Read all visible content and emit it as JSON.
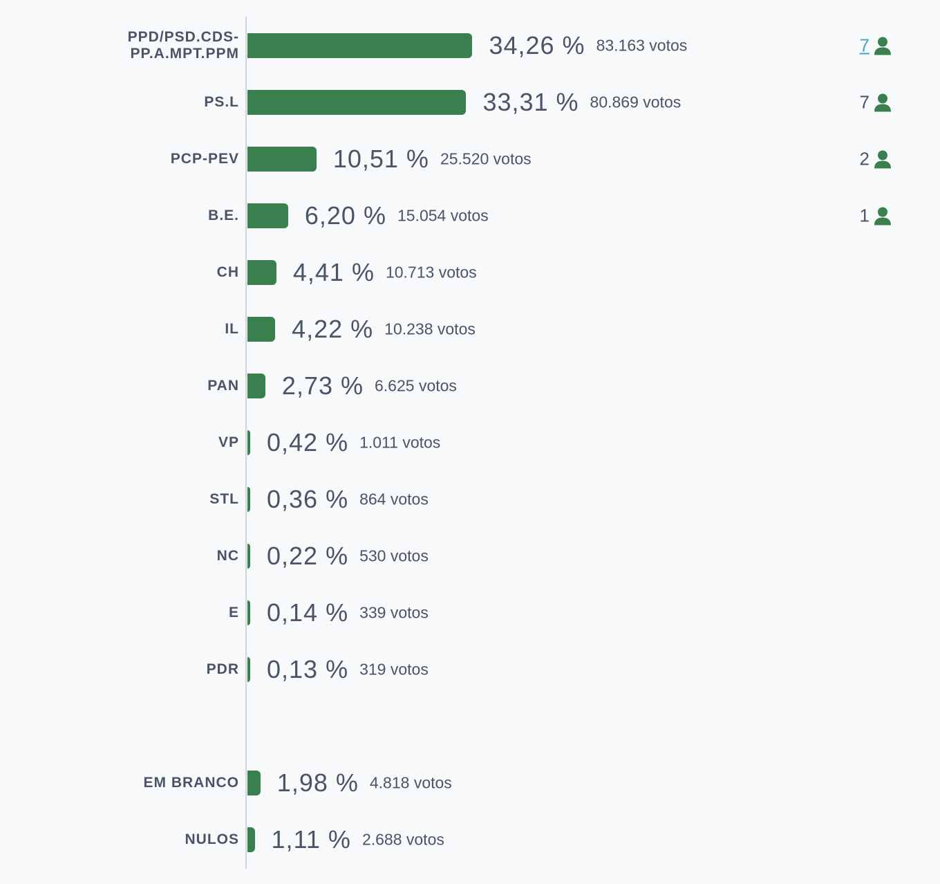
{
  "chart_data": {
    "type": "bar",
    "orientation": "horizontal",
    "value_suffix": "%",
    "votes_suffix": "votos",
    "series": [
      {
        "party": "PPD/PSD.CDS-PP.A.MPT.PPM",
        "label_lines": [
          "PPD/PSD.CDS-",
          "PP.A.MPT.PPM"
        ],
        "percent": 34.26,
        "percent_text": "34,26",
        "votes": "83.163",
        "seats": "7",
        "seats_link": true
      },
      {
        "party": "PS.L",
        "label_lines": [
          "PS.L"
        ],
        "percent": 33.31,
        "percent_text": "33,31",
        "votes": "80.869",
        "seats": "7",
        "seats_link": false
      },
      {
        "party": "PCP-PEV",
        "label_lines": [
          "PCP-PEV"
        ],
        "percent": 10.51,
        "percent_text": "10,51",
        "votes": "25.520",
        "seats": "2",
        "seats_link": false
      },
      {
        "party": "B.E.",
        "label_lines": [
          "B.E."
        ],
        "percent": 6.2,
        "percent_text": "6,20",
        "votes": "15.054",
        "seats": "1",
        "seats_link": false
      },
      {
        "party": "CH",
        "label_lines": [
          "CH"
        ],
        "percent": 4.41,
        "percent_text": "4,41",
        "votes": "10.713",
        "seats": null
      },
      {
        "party": "IL",
        "label_lines": [
          "IL"
        ],
        "percent": 4.22,
        "percent_text": "4,22",
        "votes": "10.238",
        "seats": null
      },
      {
        "party": "PAN",
        "label_lines": [
          "PAN"
        ],
        "percent": 2.73,
        "percent_text": "2,73",
        "votes": "6.625",
        "seats": null
      },
      {
        "party": "VP",
        "label_lines": [
          "VP"
        ],
        "percent": 0.42,
        "percent_text": "0,42",
        "votes": "1.011",
        "seats": null
      },
      {
        "party": "STL",
        "label_lines": [
          "STL"
        ],
        "percent": 0.36,
        "percent_text": "0,36",
        "votes": "864",
        "seats": null
      },
      {
        "party": "NC",
        "label_lines": [
          "NC"
        ],
        "percent": 0.22,
        "percent_text": "0,22",
        "votes": "530",
        "seats": null
      },
      {
        "party": "E",
        "label_lines": [
          "E"
        ],
        "percent": 0.14,
        "percent_text": "0,14",
        "votes": "339",
        "seats": null
      },
      {
        "party": "PDR",
        "label_lines": [
          "PDR"
        ],
        "percent": 0.13,
        "percent_text": "0,13",
        "votes": "319",
        "seats": null
      },
      {
        "party": "EM BRANCO",
        "label_lines": [
          "EM BRANCO"
        ],
        "percent": 1.98,
        "percent_text": "1,98",
        "votes": "4.818",
        "seats": null,
        "group": "other"
      },
      {
        "party": "NULOS",
        "label_lines": [
          "NULOS"
        ],
        "percent": 1.11,
        "percent_text": "1,11",
        "votes": "2.688",
        "seats": null,
        "group": "other"
      }
    ],
    "colors": {
      "bar": "#3a7f4e",
      "text": "#4a5468",
      "link": "#4aa3c8",
      "axis": "#cfd5dc",
      "background": "#f7f9fb"
    },
    "icons": {
      "seats": "person-icon"
    }
  }
}
